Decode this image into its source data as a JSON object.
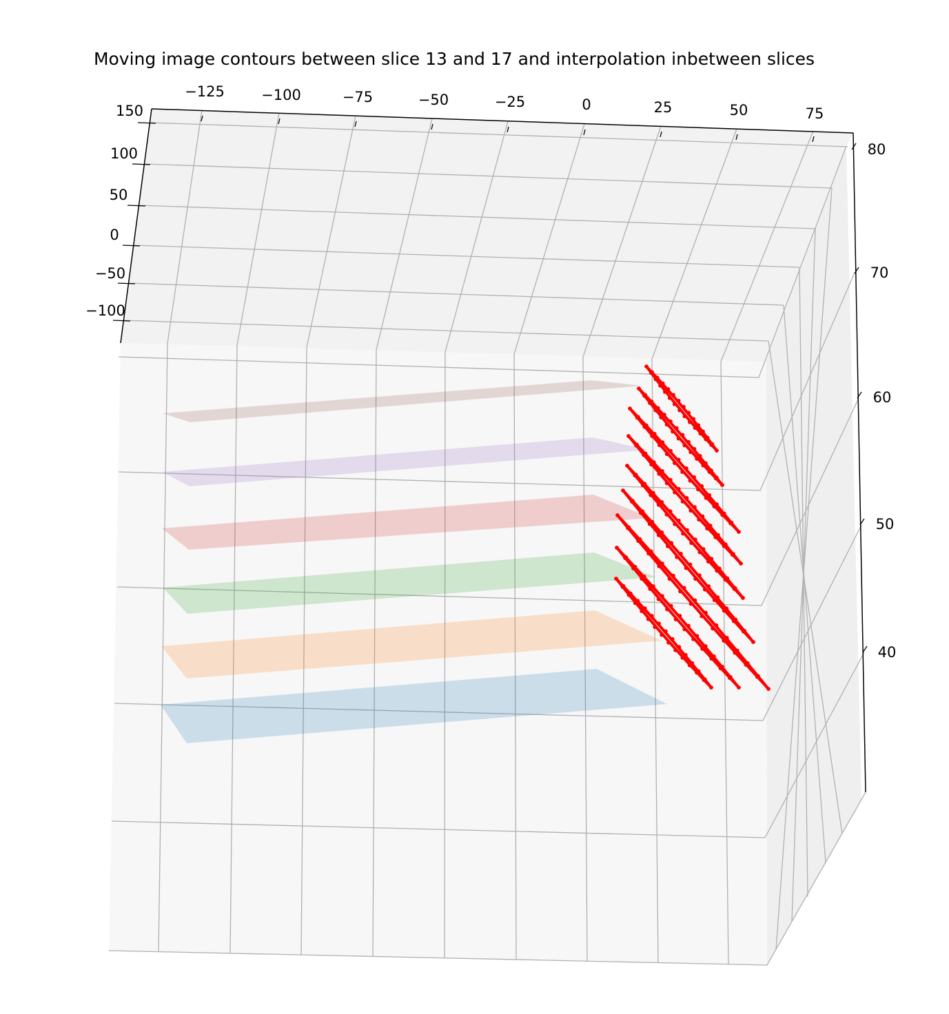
{
  "chart_data": {
    "type": "3d-scatter",
    "title": "Moving image contours between slice 13 and 17 and interpolation inbetween slices",
    "xlabel": "",
    "ylabel": "",
    "zlabel": "",
    "x_ticks": [
      "−125",
      "−100",
      "−75",
      "−50",
      "−25",
      "0",
      "25",
      "50",
      "75"
    ],
    "y_ticks": [
      "150",
      "100",
      "50",
      "0",
      "−50",
      "−100"
    ],
    "z_ticks": [
      "80",
      "70",
      "60",
      "50",
      "40"
    ],
    "grid": true,
    "planes": [
      {
        "name": "",
        "z": 37,
        "color": "#1f77b4"
      },
      {
        "name": "",
        "z": 41.5,
        "color": "#ff7f0e"
      },
      {
        "name": "",
        "z": 46,
        "color": "#2ca02c"
      },
      {
        "name": "",
        "z": 50.5,
        "color": "#d62728"
      },
      {
        "name": "",
        "z": 55,
        "color": "#9467bd"
      },
      {
        "name": "",
        "z": 59.5,
        "color": "#8c564b"
      }
    ],
    "contour_color": "#ff0000",
    "contour_count": 9
  }
}
